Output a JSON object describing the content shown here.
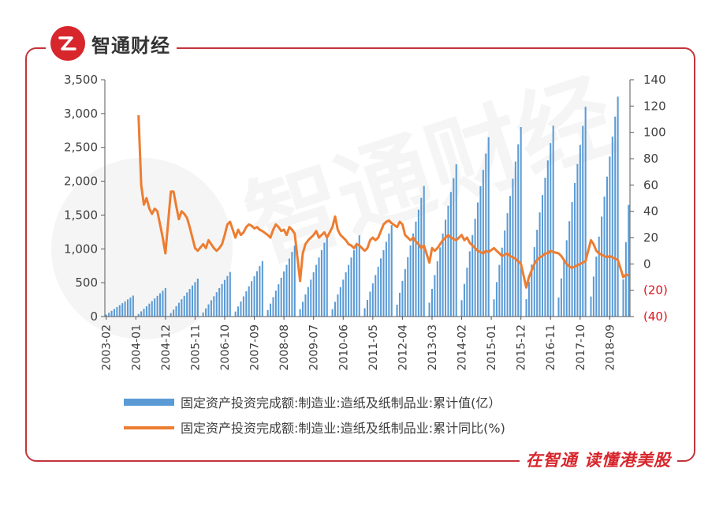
{
  "header": {
    "brand": "智通财经"
  },
  "footer": {
    "slogan": "在智通 读懂港美股"
  },
  "watermark": {
    "text": "智通财经"
  },
  "colors": {
    "bar": "#5b9bd5",
    "line": "#ed7d31",
    "frame": "#c3343c",
    "negative_label": "#e0141e"
  },
  "chart_data": {
    "type": "bar+line",
    "title": "",
    "legend": {
      "placement": "bottom",
      "entries": [
        "固定资产投资完成额:制造业:造纸及纸制品业:累计值(亿）",
        "固定资产投资完成额:制造业:造纸及纸制品业:累计同比(%)"
      ]
    },
    "left_axis": {
      "range": [
        0,
        3500
      ],
      "ticks": [
        0,
        500,
        1000,
        1500,
        2000,
        2500,
        3000,
        3500
      ],
      "tick_labels": [
        "0",
        "500",
        "1,000",
        "1,500",
        "2,000",
        "2,500",
        "3,000",
        "3,500"
      ]
    },
    "right_axis": {
      "range": [
        -40,
        140
      ],
      "ticks": [
        -40,
        -20,
        0,
        20,
        40,
        60,
        80,
        100,
        120,
        140
      ],
      "tick_labels": [
        "(40)",
        "(20)",
        "0",
        "20",
        "40",
        "60",
        "80",
        "100",
        "120",
        "140"
      ]
    },
    "x_axis": {
      "start": "2003-02",
      "end": "2019-04",
      "tick_labels": [
        "2003-02",
        "2004-01",
        "2004-12",
        "2005-11",
        "2006-10",
        "2007-09",
        "2008-08",
        "2009-07",
        "2010-06",
        "2011-05",
        "2012-04",
        "2013-03",
        "2014-02",
        "2015-01",
        "2015-12",
        "2016-11",
        "2017-10",
        "2018-09"
      ]
    },
    "series": [
      {
        "type": "bar",
        "axis": "left",
        "yearly_december_values": {
          "2003": 310,
          "2004": 420,
          "2005": 560,
          "2006": 660,
          "2007": 820,
          "2008": 1050,
          "2009": 1200,
          "2010": 1200,
          "2011": 1350,
          "2012": 1930,
          "2013": 2250,
          "2014": 2650,
          "2015": 2800,
          "2016": 2820,
          "2017": 3100,
          "2018": 3250,
          "2019": 1650
        }
      },
      {
        "type": "line",
        "axis": "right",
        "points": [
          [
            "2004-02",
            113
          ],
          [
            "2004-03",
            60
          ],
          [
            "2004-04",
            45
          ],
          [
            "2004-05",
            50
          ],
          [
            "2004-06",
            42
          ],
          [
            "2004-07",
            38
          ],
          [
            "2004-08",
            42
          ],
          [
            "2004-09",
            40
          ],
          [
            "2004-10",
            30
          ],
          [
            "2004-11",
            20
          ],
          [
            "2004-12",
            8
          ],
          [
            "2005-02",
            55
          ],
          [
            "2005-03",
            55
          ],
          [
            "2005-04",
            44
          ],
          [
            "2005-05",
            34
          ],
          [
            "2005-06",
            40
          ],
          [
            "2005-07",
            38
          ],
          [
            "2005-08",
            35
          ],
          [
            "2005-09",
            28
          ],
          [
            "2005-10",
            20
          ],
          [
            "2005-11",
            12
          ],
          [
            "2005-12",
            10
          ],
          [
            "2006-02",
            15
          ],
          [
            "2006-03",
            12
          ],
          [
            "2006-04",
            18
          ],
          [
            "2006-05",
            15
          ],
          [
            "2006-06",
            12
          ],
          [
            "2006-07",
            10
          ],
          [
            "2006-08",
            12
          ],
          [
            "2006-09",
            15
          ],
          [
            "2006-10",
            22
          ],
          [
            "2006-11",
            30
          ],
          [
            "2006-12",
            32
          ],
          [
            "2007-02",
            20
          ],
          [
            "2007-03",
            26
          ],
          [
            "2007-04",
            22
          ],
          [
            "2007-05",
            24
          ],
          [
            "2007-06",
            28
          ],
          [
            "2007-07",
            30
          ],
          [
            "2007-08",
            29
          ],
          [
            "2007-09",
            27
          ],
          [
            "2007-10",
            28
          ],
          [
            "2007-11",
            26
          ],
          [
            "2007-12",
            25
          ],
          [
            "2008-02",
            22
          ],
          [
            "2008-03",
            20
          ],
          [
            "2008-04",
            26
          ],
          [
            "2008-05",
            30
          ],
          [
            "2008-06",
            28
          ],
          [
            "2008-07",
            25
          ],
          [
            "2008-08",
            26
          ],
          [
            "2008-09",
            22
          ],
          [
            "2008-10",
            28
          ],
          [
            "2008-11",
            26
          ],
          [
            "2008-12",
            23
          ],
          [
            "2009-02",
            -13
          ],
          [
            "2009-03",
            8
          ],
          [
            "2009-04",
            15
          ],
          [
            "2009-05",
            18
          ],
          [
            "2009-06",
            20
          ],
          [
            "2009-07",
            22
          ],
          [
            "2009-08",
            25
          ],
          [
            "2009-09",
            20
          ],
          [
            "2009-10",
            22
          ],
          [
            "2009-11",
            24
          ],
          [
            "2009-12",
            20
          ],
          [
            "2010-02",
            28
          ],
          [
            "2010-03",
            36
          ],
          [
            "2010-04",
            26
          ],
          [
            "2010-05",
            22
          ],
          [
            "2010-06",
            20
          ],
          [
            "2010-07",
            18
          ],
          [
            "2010-08",
            15
          ],
          [
            "2010-09",
            14
          ],
          [
            "2010-10",
            12
          ],
          [
            "2010-11",
            15
          ],
          [
            "2010-12",
            14
          ],
          [
            "2011-02",
            10
          ],
          [
            "2011-03",
            12
          ],
          [
            "2011-04",
            18
          ],
          [
            "2011-05",
            20
          ],
          [
            "2011-06",
            18
          ],
          [
            "2011-07",
            20
          ],
          [
            "2011-08",
            25
          ],
          [
            "2011-09",
            30
          ],
          [
            "2011-10",
            32
          ],
          [
            "2011-11",
            33
          ],
          [
            "2011-12",
            31
          ],
          [
            "2012-02",
            28
          ],
          [
            "2012-03",
            32
          ],
          [
            "2012-04",
            30
          ],
          [
            "2012-05",
            22
          ],
          [
            "2012-06",
            20
          ],
          [
            "2012-07",
            18
          ],
          [
            "2012-08",
            20
          ],
          [
            "2012-09",
            17
          ],
          [
            "2012-10",
            15
          ],
          [
            "2012-11",
            12
          ],
          [
            "2012-12",
            14
          ],
          [
            "2013-02",
            1
          ],
          [
            "2013-03",
            12
          ],
          [
            "2013-04",
            10
          ],
          [
            "2013-05",
            12
          ],
          [
            "2013-06",
            15
          ],
          [
            "2013-07",
            18
          ],
          [
            "2013-08",
            20
          ],
          [
            "2013-09",
            22
          ],
          [
            "2013-10",
            20
          ],
          [
            "2013-11",
            19
          ],
          [
            "2013-12",
            18
          ],
          [
            "2014-02",
            22
          ],
          [
            "2014-03",
            18
          ],
          [
            "2014-04",
            20
          ],
          [
            "2014-05",
            16
          ],
          [
            "2014-06",
            14
          ],
          [
            "2014-07",
            12
          ],
          [
            "2014-08",
            10
          ],
          [
            "2014-09",
            9
          ],
          [
            "2014-10",
            8
          ],
          [
            "2014-11",
            10
          ],
          [
            "2014-12",
            9
          ],
          [
            "2015-02",
            12
          ],
          [
            "2015-03",
            10
          ],
          [
            "2015-04",
            8
          ],
          [
            "2015-05",
            6
          ],
          [
            "2015-06",
            7
          ],
          [
            "2015-07",
            8
          ],
          [
            "2015-08",
            6
          ],
          [
            "2015-09",
            5
          ],
          [
            "2015-10",
            4
          ],
          [
            "2015-11",
            2
          ],
          [
            "2015-12",
            0
          ],
          [
            "2016-02",
            -18
          ],
          [
            "2016-03",
            -10
          ],
          [
            "2016-04",
            -5
          ],
          [
            "2016-05",
            0
          ],
          [
            "2016-06",
            3
          ],
          [
            "2016-07",
            5
          ],
          [
            "2016-08",
            6
          ],
          [
            "2016-09",
            8
          ],
          [
            "2016-10",
            8
          ],
          [
            "2016-11",
            10
          ],
          [
            "2016-12",
            9
          ],
          [
            "2017-02",
            8
          ],
          [
            "2017-03",
            6
          ],
          [
            "2017-04",
            3
          ],
          [
            "2017-05",
            0
          ],
          [
            "2017-06",
            -2
          ],
          [
            "2017-07",
            -3
          ],
          [
            "2017-08",
            -2
          ],
          [
            "2017-09",
            -1
          ],
          [
            "2017-10",
            0
          ],
          [
            "2017-11",
            1
          ],
          [
            "2017-12",
            2
          ],
          [
            "2018-02",
            18
          ],
          [
            "2018-03",
            15
          ],
          [
            "2018-04",
            10
          ],
          [
            "2018-05",
            8
          ],
          [
            "2018-06",
            7
          ],
          [
            "2018-07",
            6
          ],
          [
            "2018-08",
            5
          ],
          [
            "2018-09",
            6
          ],
          [
            "2018-10",
            5
          ],
          [
            "2018-11",
            4
          ],
          [
            "2018-12",
            3
          ],
          [
            "2019-02",
            -10
          ],
          [
            "2019-03",
            -8
          ],
          [
            "2019-04",
            -9
          ]
        ]
      }
    ]
  }
}
